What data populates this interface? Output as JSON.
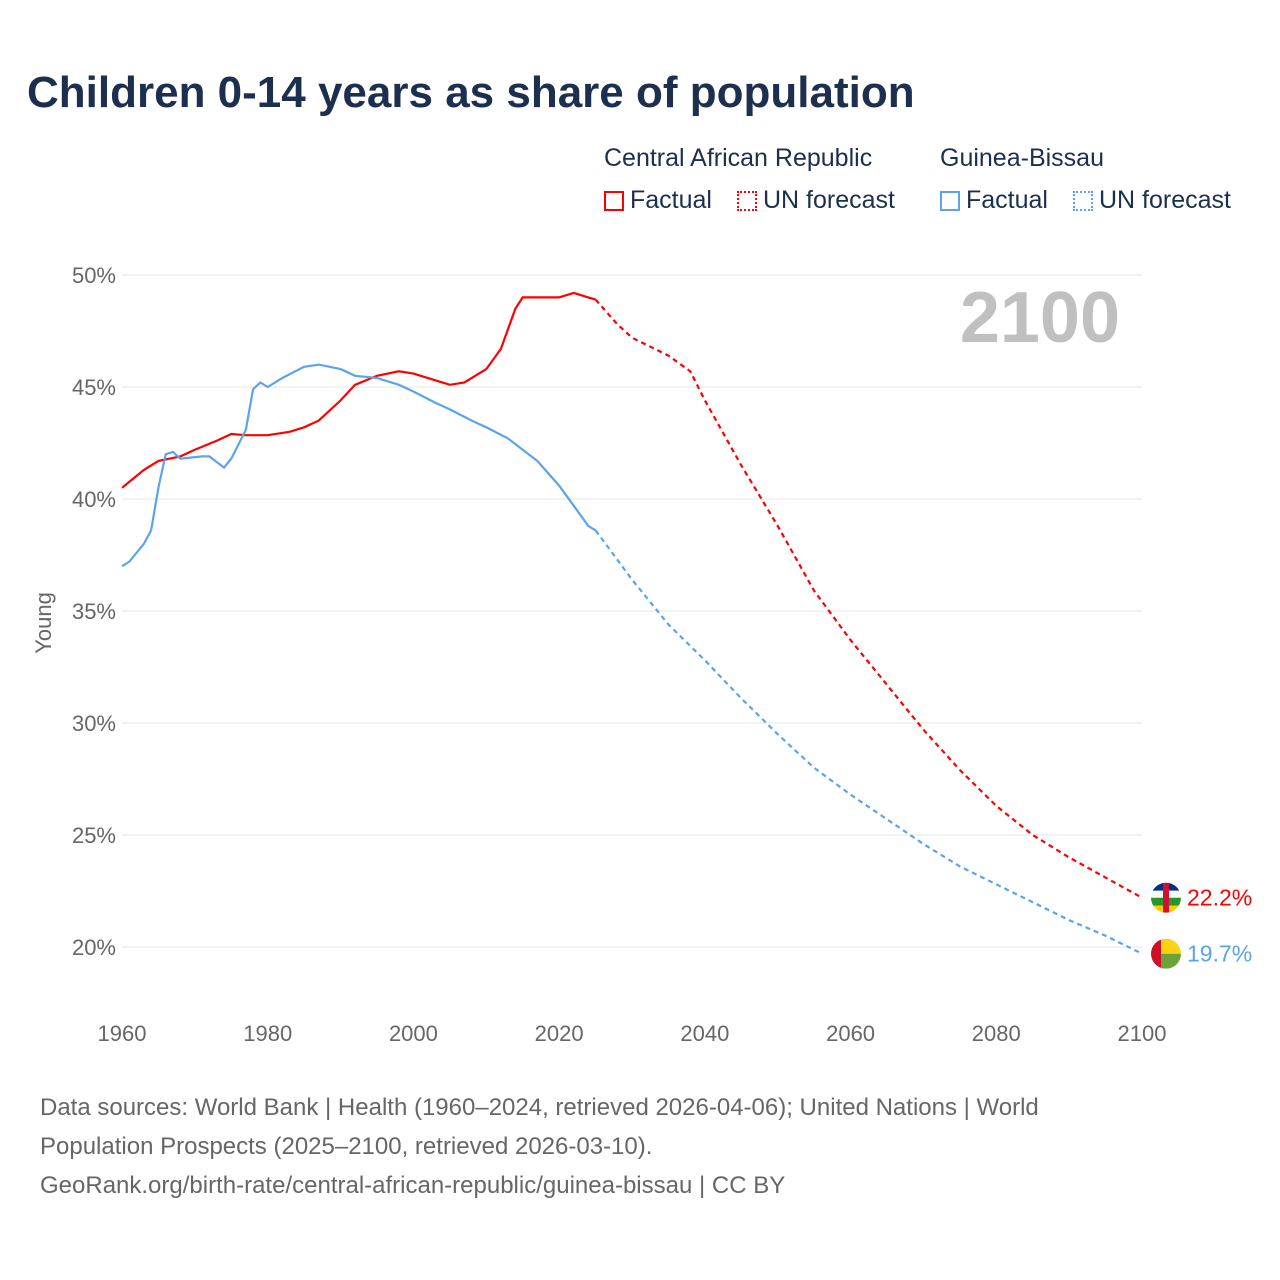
{
  "title": "Children 0-14 years as share of population",
  "legend": {
    "groups": [
      {
        "name": "Central African Republic",
        "factual": "Factual",
        "forecast": "UN forecast",
        "color": "#ff0000"
      },
      {
        "name": "Guinea-Bissau",
        "factual": "Factual",
        "forecast": "UN forecast",
        "color": "#5ba3ea"
      }
    ]
  },
  "year_label": "2100",
  "sources": [
    "Data sources: World Bank | Health (1960–2024, retrieved 2026-04-06); United Nations | World",
    "Population Prospects (2025–2100, retrieved 2026-03-10).",
    "GeoRank.org/birth-rate/central-african-republic/guinea-bissau | CC BY"
  ],
  "chart_data": {
    "type": "line",
    "title": "Children 0-14 years as share of population",
    "ylabel": "Young",
    "xlabel": "",
    "xlim": [
      1960,
      2100
    ],
    "ylim": [
      20,
      50
    ],
    "xticks": [
      "1960",
      "1980",
      "2000",
      "2020",
      "2040",
      "2060",
      "2080",
      "2100"
    ],
    "yticks": [
      "20%",
      "25%",
      "30%",
      "35%",
      "40%",
      "45%",
      "50%"
    ],
    "grid": true,
    "series": [
      {
        "name": "Central African Republic",
        "color": "#ff0000",
        "end_label": "22.2%",
        "factual": [
          [
            1960,
            40.5
          ],
          [
            1963,
            41.3
          ],
          [
            1965,
            41.7
          ],
          [
            1968,
            41.9
          ],
          [
            1970,
            42.2
          ],
          [
            1973,
            42.6
          ],
          [
            1975,
            42.9
          ],
          [
            1977,
            42.85
          ],
          [
            1980,
            42.85
          ],
          [
            1983,
            43.0
          ],
          [
            1985,
            43.2
          ],
          [
            1987,
            43.5
          ],
          [
            1990,
            44.4
          ],
          [
            1992,
            45.1
          ],
          [
            1995,
            45.5
          ],
          [
            1998,
            45.7
          ],
          [
            2000,
            45.6
          ],
          [
            2003,
            45.3
          ],
          [
            2005,
            45.1
          ],
          [
            2007,
            45.2
          ],
          [
            2010,
            45.8
          ],
          [
            2012,
            46.7
          ],
          [
            2014,
            48.5
          ],
          [
            2015,
            49.0
          ],
          [
            2018,
            49.0
          ],
          [
            2020,
            49.0
          ],
          [
            2022,
            49.2
          ],
          [
            2024,
            49.0
          ],
          [
            2025,
            48.9
          ]
        ],
        "forecast": [
          [
            2025,
            48.9
          ],
          [
            2028,
            47.8
          ],
          [
            2030,
            47.2
          ],
          [
            2035,
            46.4
          ],
          [
            2038,
            45.7
          ],
          [
            2040,
            44.4
          ],
          [
            2045,
            41.5
          ],
          [
            2050,
            38.8
          ],
          [
            2055,
            35.9
          ],
          [
            2060,
            33.7
          ],
          [
            2065,
            31.7
          ],
          [
            2070,
            29.7
          ],
          [
            2075,
            27.9
          ],
          [
            2080,
            26.3
          ],
          [
            2085,
            25.0
          ],
          [
            2090,
            24.0
          ],
          [
            2095,
            23.1
          ],
          [
            2100,
            22.2
          ]
        ]
      },
      {
        "name": "Guinea-Bissau",
        "color": "#5ba3ea",
        "end_label": "19.7%",
        "factual": [
          [
            1960,
            37.0
          ],
          [
            1961,
            37.2
          ],
          [
            1963,
            38.0
          ],
          [
            1964,
            38.6
          ],
          [
            1965,
            40.5
          ],
          [
            1966,
            42.0
          ],
          [
            1967,
            42.1
          ],
          [
            1968,
            41.8
          ],
          [
            1971,
            41.9
          ],
          [
            1972,
            41.9
          ],
          [
            1974,
            41.4
          ],
          [
            1975,
            41.8
          ],
          [
            1977,
            43.1
          ],
          [
            1978,
            44.9
          ],
          [
            1979,
            45.2
          ],
          [
            1980,
            45.0
          ],
          [
            1982,
            45.4
          ],
          [
            1985,
            45.9
          ],
          [
            1987,
            46.0
          ],
          [
            1990,
            45.8
          ],
          [
            1992,
            45.5
          ],
          [
            1995,
            45.4
          ],
          [
            1998,
            45.1
          ],
          [
            2000,
            44.8
          ],
          [
            2003,
            44.3
          ],
          [
            2005,
            44.0
          ],
          [
            2008,
            43.5
          ],
          [
            2010,
            43.2
          ],
          [
            2013,
            42.7
          ],
          [
            2015,
            42.2
          ],
          [
            2017,
            41.7
          ],
          [
            2020,
            40.6
          ],
          [
            2022,
            39.7
          ],
          [
            2024,
            38.8
          ],
          [
            2025,
            38.6
          ]
        ],
        "forecast": [
          [
            2025,
            38.6
          ],
          [
            2030,
            36.4
          ],
          [
            2035,
            34.4
          ],
          [
            2040,
            32.8
          ],
          [
            2045,
            31.1
          ],
          [
            2050,
            29.5
          ],
          [
            2055,
            28.0
          ],
          [
            2060,
            26.8
          ],
          [
            2065,
            25.7
          ],
          [
            2070,
            24.6
          ],
          [
            2075,
            23.6
          ],
          [
            2080,
            22.8
          ],
          [
            2085,
            22.0
          ],
          [
            2090,
            21.2
          ],
          [
            2095,
            20.5
          ],
          [
            2100,
            19.7
          ]
        ]
      }
    ]
  }
}
